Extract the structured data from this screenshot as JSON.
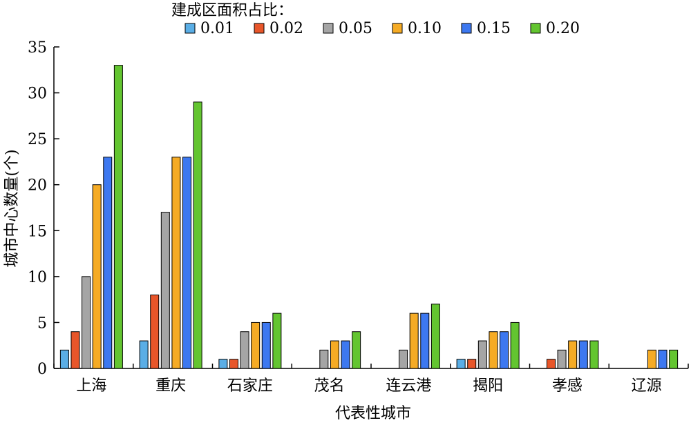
{
  "chart_data": {
    "type": "bar",
    "xlabel": "代表性城市",
    "ylabel": "城市中心数量(个)",
    "ylim": [
      0,
      35
    ],
    "yticks": [
      0,
      5,
      10,
      15,
      20,
      25,
      30,
      35
    ],
    "grid": false,
    "legend": {
      "title": "建成区面积占比：",
      "position": "top"
    },
    "categories": [
      "上海",
      "重庆",
      "石家庄",
      "茂名",
      "连云港",
      "揭阳",
      "孝感",
      "辽源"
    ],
    "series": [
      {
        "name": "0.01",
        "color": "#5aaee6",
        "values": [
          2,
          3,
          1,
          0,
          0,
          1,
          0,
          0
        ]
      },
      {
        "name": "0.02",
        "color": "#e8562a",
        "values": [
          4,
          8,
          1,
          0,
          0,
          1,
          1,
          0
        ]
      },
      {
        "name": "0.05",
        "color": "#a5a5a5",
        "values": [
          10,
          17,
          4,
          2,
          2,
          3,
          2,
          0
        ]
      },
      {
        "name": "0.10",
        "color": "#f5ab25",
        "values": [
          20,
          23,
          5,
          3,
          6,
          4,
          3,
          2
        ]
      },
      {
        "name": "0.15",
        "color": "#3d78f0",
        "values": [
          23,
          23,
          5,
          3,
          6,
          4,
          3,
          2
        ]
      },
      {
        "name": "0.20",
        "color": "#63c530",
        "values": [
          33,
          29,
          6,
          4,
          7,
          5,
          3,
          2
        ]
      }
    ]
  }
}
